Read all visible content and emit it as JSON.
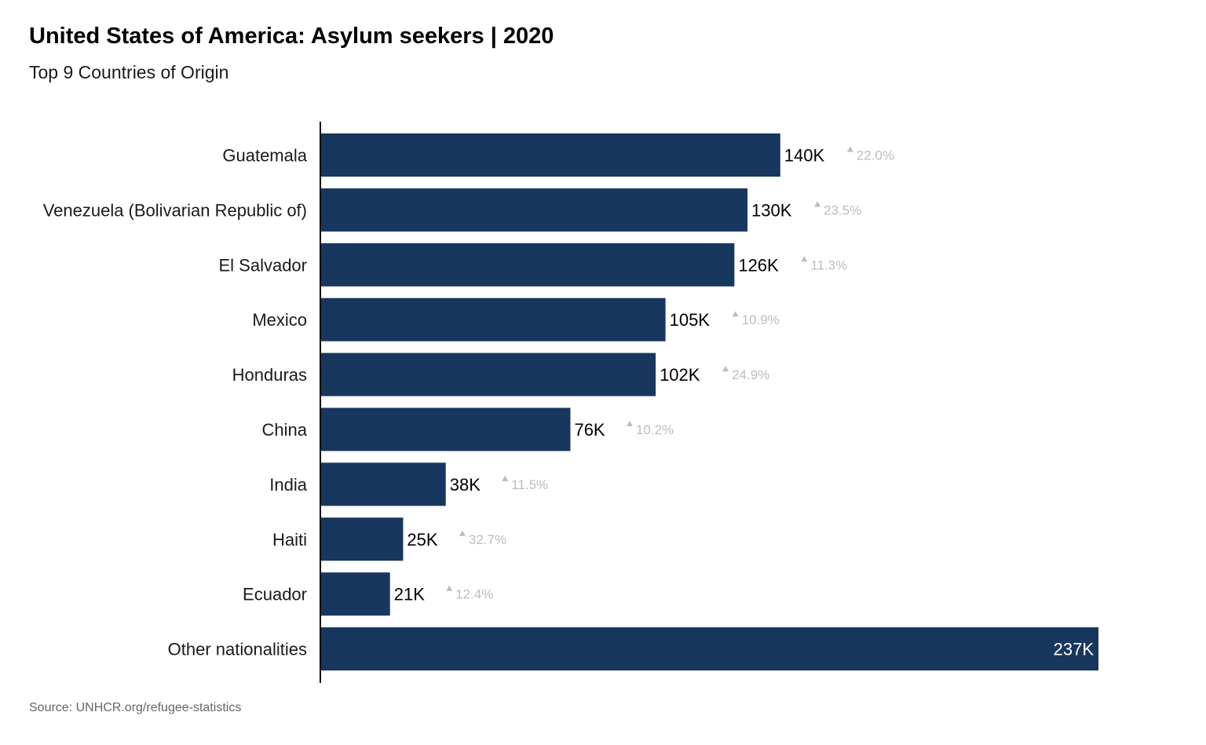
{
  "header": {
    "title": "United States of America: Asylum seekers | 2020",
    "subtitle": "Top 9 Countries of Origin"
  },
  "footer": {
    "source": "Source: UNHCR.org/refugee-statistics"
  },
  "colors": {
    "bar": "#18375e",
    "label": "#000000",
    "change": "#bdbdbd",
    "axis": "#000000"
  },
  "chart_data": {
    "type": "bar",
    "orientation": "horizontal",
    "title": "United States of America: Asylum seekers | 2020",
    "subtitle": "Top 9 Countries of Origin",
    "xlabel": "",
    "ylabel": "",
    "xlim": [
      0,
      237
    ],
    "grid": false,
    "unit": "thousands",
    "categories": [
      "Guatemala",
      "Venezuela (Bolivarian Republic of)",
      "El Salvador",
      "Mexico",
      "Honduras",
      "China",
      "India",
      "Haiti",
      "Ecuador",
      "Other nationalities"
    ],
    "values": [
      140,
      130,
      126,
      105,
      102,
      76,
      38,
      25,
      21,
      237
    ],
    "value_labels": [
      "140K",
      "130K",
      "126K",
      "105K",
      "102K",
      "76K",
      "38K",
      "25K",
      "21K",
      "237K"
    ],
    "change_labels": [
      "22.0%",
      "23.5%",
      "11.3%",
      "10.9%",
      "24.9%",
      "10.2%",
      "11.5%",
      "32.7%",
      "12.4%",
      null
    ],
    "change_direction": [
      "up",
      "up",
      "up",
      "up",
      "up",
      "up",
      "up",
      "up",
      "up",
      null
    ]
  }
}
